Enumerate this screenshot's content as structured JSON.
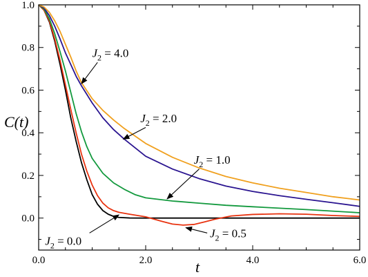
{
  "chart_data": {
    "type": "line",
    "xlabel": "t",
    "ylabel": "C(t)",
    "xlim": [
      0,
      6
    ],
    "ylim": [
      -0.15,
      1.0
    ],
    "xticks": [
      0,
      2,
      4,
      6
    ],
    "xtick_labels": [
      "0.0",
      "2.0",
      "4.0",
      "6.0"
    ],
    "yticks": [
      0,
      0.2,
      0.4,
      0.6,
      0.8,
      1.0
    ],
    "ytick_labels": [
      "0.0",
      "0.2",
      "0.4",
      "0.6",
      "0.8",
      "1.0"
    ],
    "grid": false,
    "series": [
      {
        "name": "J2 = 0.0",
        "color": "#000000",
        "x": [
          0,
          0.1,
          0.2,
          0.3,
          0.4,
          0.5,
          0.6,
          0.7,
          0.8,
          0.9,
          1.0,
          1.1,
          1.2,
          1.3,
          1.4,
          1.5,
          1.7,
          2.0,
          3.0,
          4.0,
          5.0,
          6.0
        ],
        "y": [
          1.0,
          0.975,
          0.92,
          0.83,
          0.72,
          0.6,
          0.47,
          0.36,
          0.26,
          0.18,
          0.11,
          0.065,
          0.035,
          0.018,
          0.008,
          0.003,
          0.0005,
          0,
          0,
          0,
          0,
          0
        ]
      },
      {
        "name": "J2 = 0.5",
        "color": "#e8320f",
        "x": [
          0,
          0.1,
          0.2,
          0.3,
          0.4,
          0.5,
          0.6,
          0.7,
          0.8,
          0.9,
          1.0,
          1.1,
          1.2,
          1.3,
          1.4,
          1.5,
          1.7,
          2.0,
          2.3,
          2.5,
          2.7,
          2.9,
          3.1,
          3.3,
          3.6,
          4.0,
          4.5,
          5.0,
          5.5,
          6.0
        ],
        "y": [
          1.0,
          0.975,
          0.925,
          0.84,
          0.74,
          0.625,
          0.51,
          0.4,
          0.3,
          0.22,
          0.155,
          0.105,
          0.07,
          0.048,
          0.035,
          0.027,
          0.018,
          0.006,
          -0.015,
          -0.028,
          -0.033,
          -0.03,
          -0.018,
          -0.005,
          0.01,
          0.017,
          0.02,
          0.018,
          0.012,
          0.008
        ]
      },
      {
        "name": "J2 = 1.0",
        "color": "#12993d",
        "x": [
          0,
          0.1,
          0.2,
          0.3,
          0.4,
          0.5,
          0.6,
          0.7,
          0.8,
          0.9,
          1.0,
          1.2,
          1.4,
          1.6,
          1.8,
          2.0,
          2.5,
          3.0,
          3.5,
          4.0,
          5.0,
          6.0
        ],
        "y": [
          1.0,
          0.98,
          0.935,
          0.865,
          0.78,
          0.69,
          0.59,
          0.49,
          0.405,
          0.335,
          0.28,
          0.21,
          0.165,
          0.135,
          0.11,
          0.095,
          0.08,
          0.07,
          0.06,
          0.053,
          0.04,
          0.025
        ]
      },
      {
        "name": "J2 = 2.0",
        "color": "#2a1490",
        "x": [
          0,
          0.1,
          0.2,
          0.3,
          0.4,
          0.5,
          0.6,
          0.7,
          0.8,
          1.0,
          1.2,
          1.4,
          1.6,
          1.8,
          2.0,
          2.5,
          3.0,
          3.5,
          4.0,
          4.5,
          5.0,
          5.5,
          6.0
        ],
        "y": [
          1.0,
          0.985,
          0.95,
          0.9,
          0.84,
          0.775,
          0.72,
          0.665,
          0.62,
          0.54,
          0.47,
          0.415,
          0.37,
          0.33,
          0.29,
          0.23,
          0.185,
          0.15,
          0.125,
          0.105,
          0.088,
          0.072,
          0.055
        ]
      },
      {
        "name": "J2 = 4.0",
        "color": "#f0a01e",
        "x": [
          0,
          0.1,
          0.2,
          0.3,
          0.4,
          0.5,
          0.6,
          0.7,
          0.8,
          1.0,
          1.2,
          1.4,
          1.6,
          1.8,
          2.0,
          2.5,
          3.0,
          3.5,
          4.0,
          4.5,
          5.0,
          5.5,
          6.0
        ],
        "y": [
          1.0,
          0.99,
          0.965,
          0.925,
          0.875,
          0.815,
          0.755,
          0.69,
          0.635,
          0.56,
          0.505,
          0.46,
          0.42,
          0.385,
          0.35,
          0.285,
          0.235,
          0.195,
          0.165,
          0.14,
          0.12,
          0.1,
          0.085
        ]
      }
    ],
    "annotations": [
      {
        "sym": "J",
        "sub": "2",
        "rest": " = 4.0",
        "text_at": [
          1.0,
          0.755
        ],
        "arrow_from": [
          1.1,
          0.73
        ],
        "arrow_to": [
          0.8,
          0.63
        ]
      },
      {
        "sym": "J",
        "sub": "2",
        "rest": " = 2.0",
        "text_at": [
          1.9,
          0.45
        ],
        "arrow_from": [
          2.0,
          0.425
        ],
        "arrow_to": [
          1.58,
          0.37
        ]
      },
      {
        "sym": "J",
        "sub": "2",
        "rest": " = 1.0",
        "text_at": [
          2.9,
          0.255
        ],
        "arrow_from": [
          3.0,
          0.23
        ],
        "arrow_to": [
          2.4,
          0.09
        ]
      },
      {
        "sym": "J",
        "sub": "2",
        "rest": " = 0.0",
        "text_at": [
          0.12,
          -0.125
        ],
        "arrow_from": [
          0.95,
          -0.07
        ],
        "arrow_to": [
          1.5,
          0.015
        ]
      },
      {
        "sym": "J",
        "sub": "2",
        "rest": " = 0.5",
        "text_at": [
          3.2,
          -0.09
        ],
        "arrow_from": [
          3.15,
          -0.07
        ],
        "arrow_to": [
          2.75,
          -0.045
        ]
      }
    ]
  }
}
